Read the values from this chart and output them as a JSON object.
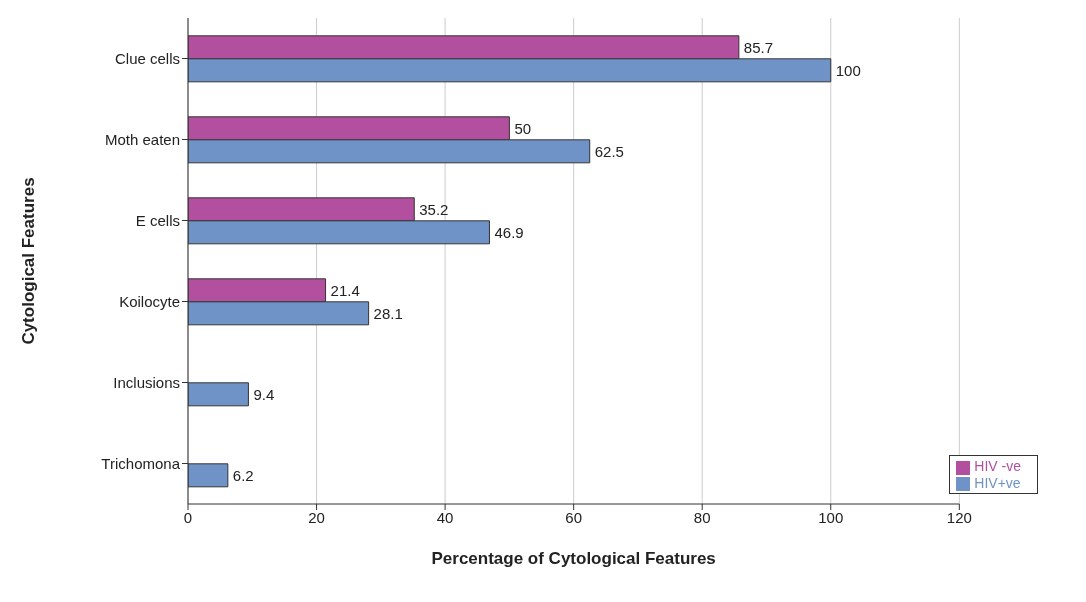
{
  "chart_data": {
    "type": "bar",
    "orientation": "horizontal",
    "xlabel": "Percentage of Cytological Features",
    "ylabel": "Cytological Features",
    "categories": [
      "Clue cells",
      "Moth eaten",
      "E cells",
      "Koilocyte",
      "Inclusions",
      "Trichomona"
    ],
    "series": [
      {
        "name": "HIV -ve",
        "color": "#b24f9f",
        "values": [
          85.7,
          50,
          35.2,
          21.4,
          null,
          null
        ]
      },
      {
        "name": "HIV+ve",
        "color": "#6f93c6",
        "values": [
          100,
          62.5,
          46.9,
          28.1,
          9.4,
          6.2
        ]
      }
    ],
    "xlim": [
      0,
      120
    ],
    "xticks": [
      0,
      20,
      40,
      60,
      80,
      100,
      120
    ],
    "grid": "x",
    "legend": "bottom right",
    "data_labels": true
  }
}
